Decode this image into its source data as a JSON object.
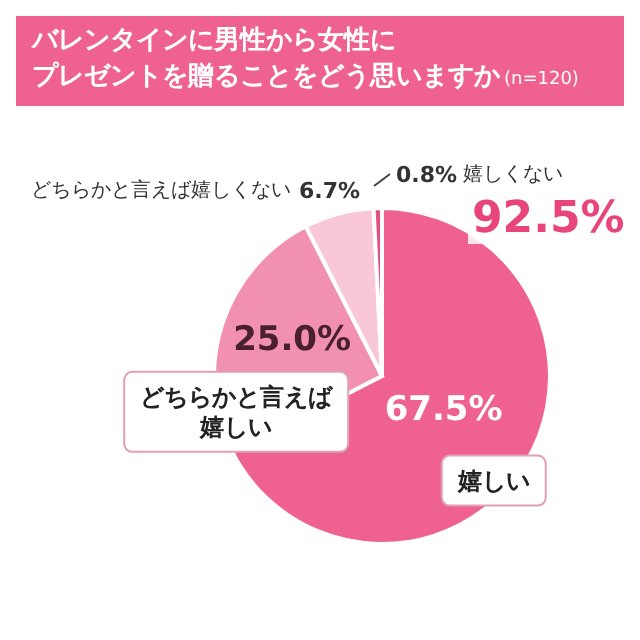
{
  "chart_data": {
    "type": "pie",
    "title": "バレンタインに男性から女性にプレゼントを贈ることをどう思いますか",
    "subtitle": "(n=120)",
    "categories": [
      "嬉しい",
      "どちらかと言えば嬉しい",
      "どちらかと言えば嬉しくない",
      "嬉しくない"
    ],
    "values": [
      67.5,
      25.0,
      6.7,
      0.8
    ],
    "colors": [
      "#ef6290",
      "#f290b2",
      "#f8c8d8",
      "#e0517f"
    ],
    "value_labels": [
      "67.5%",
      "25.0%",
      "6.7%",
      "0.8%"
    ],
    "annotations": [
      "92.5%"
    ],
    "legend": false
  }
}
